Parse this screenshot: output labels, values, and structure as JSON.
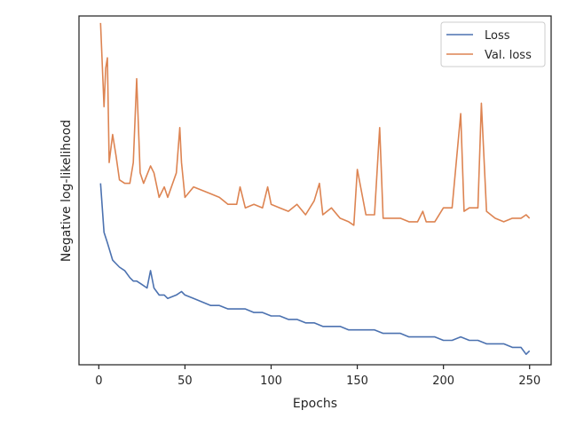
{
  "chart_data": {
    "type": "line",
    "title": "",
    "xlabel": "Epochs",
    "ylabel": "Negative log-likelihood",
    "xlim": [
      -11.5,
      262.5
    ],
    "ylim": [
      0,
      100
    ],
    "xticks": [
      0,
      50,
      100,
      150,
      200,
      250
    ],
    "xtick_labels": [
      "0",
      "50",
      "100",
      "150",
      "200",
      "250"
    ],
    "yticks_visible": false,
    "grid": false,
    "legend": {
      "position": "top-right"
    },
    "series": [
      {
        "name": "Loss",
        "color": "#4c72b0",
        "x": [
          1,
          3,
          5,
          8,
          10,
          12,
          15,
          18,
          20,
          22,
          25,
          28,
          30,
          32,
          35,
          38,
          40,
          45,
          48,
          50,
          55,
          60,
          65,
          70,
          75,
          80,
          85,
          90,
          95,
          100,
          105,
          110,
          115,
          120,
          125,
          130,
          135,
          140,
          145,
          150,
          155,
          160,
          165,
          170,
          175,
          180,
          185,
          190,
          195,
          200,
          205,
          210,
          215,
          220,
          225,
          230,
          235,
          240,
          245,
          248,
          250
        ],
        "y": [
          52,
          38,
          35,
          30,
          29,
          28,
          27,
          25,
          24,
          24,
          23,
          22,
          27,
          22,
          20,
          20,
          19,
          20,
          21,
          20,
          19,
          18,
          17,
          17,
          16,
          16,
          16,
          15,
          15,
          14,
          14,
          13,
          13,
          12,
          12,
          11,
          11,
          11,
          10,
          10,
          10,
          10,
          9,
          9,
          9,
          8,
          8,
          8,
          8,
          7,
          7,
          8,
          7,
          7,
          6,
          6,
          6,
          5,
          5,
          3,
          4
        ]
      },
      {
        "name": "Val. loss",
        "color": "#dd8452",
        "x": [
          1,
          3,
          4,
          5,
          6,
          8,
          10,
          12,
          15,
          18,
          20,
          22,
          24,
          26,
          30,
          32,
          35,
          38,
          40,
          45,
          47,
          48,
          50,
          55,
          60,
          65,
          70,
          75,
          80,
          82,
          85,
          90,
          95,
          98,
          100,
          105,
          110,
          115,
          120,
          125,
          128,
          130,
          135,
          140,
          145,
          148,
          150,
          155,
          160,
          163,
          165,
          170,
          175,
          180,
          185,
          188,
          190,
          195,
          200,
          205,
          210,
          212,
          215,
          220,
          222,
          225,
          230,
          235,
          240,
          245,
          248,
          250
        ],
        "y": [
          98,
          74,
          85,
          88,
          58,
          66,
          60,
          53,
          52,
          52,
          58,
          82,
          55,
          52,
          57,
          55,
          48,
          51,
          48,
          55,
          68,
          58,
          48,
          51,
          50,
          49,
          48,
          46,
          46,
          51,
          45,
          46,
          45,
          51,
          46,
          45,
          44,
          46,
          43,
          47,
          52,
          43,
          45,
          42,
          41,
          40,
          56,
          43,
          43,
          68,
          42,
          42,
          42,
          41,
          41,
          44,
          41,
          41,
          45,
          45,
          72,
          44,
          45,
          45,
          75,
          44,
          42,
          41,
          42,
          42,
          43,
          42
        ]
      }
    ]
  }
}
